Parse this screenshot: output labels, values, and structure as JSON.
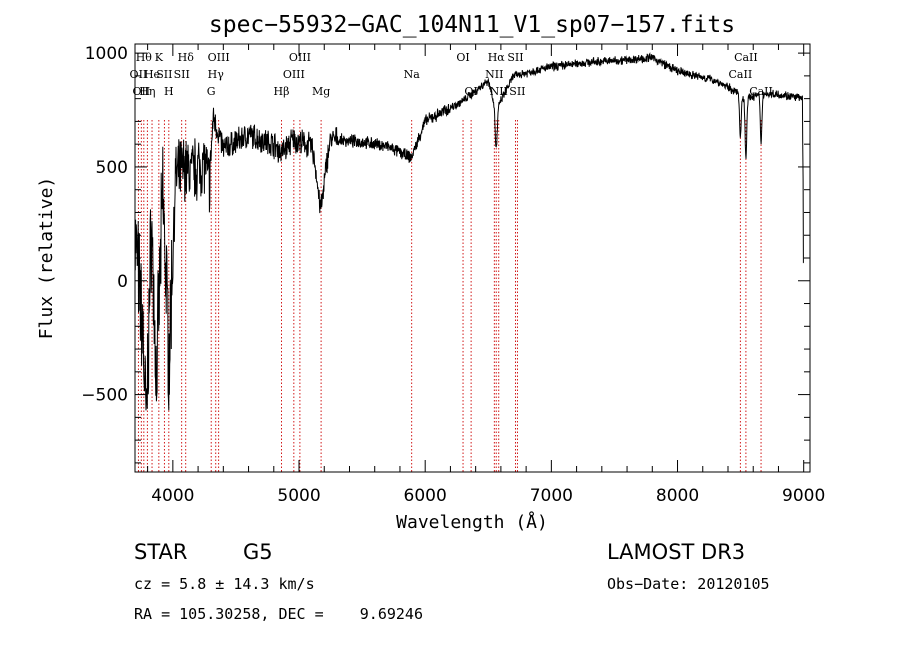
{
  "chart_data": {
    "type": "line",
    "title": "spec−55932−GAC_104N11_V1_sp07−157.fits",
    "xlabel": "Wavelength (Å)",
    "ylabel": "Flux (relative)",
    "xlim": [
      3700,
      9050
    ],
    "ylim": [
      -840,
      1040
    ],
    "x_ticks": [
      4000,
      5000,
      6000,
      7000,
      8000,
      9000
    ],
    "x_tick_labels": [
      "4000",
      "5000",
      "6000",
      "7000",
      "8000",
      "9000"
    ],
    "y_ticks": [
      -500,
      0,
      500,
      1000
    ],
    "y_tick_labels": [
      "−500",
      "0",
      "500",
      "1000"
    ],
    "grid": false,
    "spectrum_anchors": [
      {
        "w": 3700,
        "f": 200
      },
      {
        "w": 3760,
        "f": -200
      },
      {
        "w": 3790,
        "f": -640
      },
      {
        "w": 3830,
        "f": 250
      },
      {
        "w": 3870,
        "f": -450
      },
      {
        "w": 3920,
        "f": 400
      },
      {
        "w": 3970,
        "f": -350
      },
      {
        "w": 4020,
        "f": 450
      },
      {
        "w": 4080,
        "f": 500
      },
      {
        "w": 4150,
        "f": 480
      },
      {
        "w": 4250,
        "f": 520
      },
      {
        "w": 4290,
        "f": 430
      },
      {
        "w": 4320,
        "f": 720
      },
      {
        "w": 4400,
        "f": 580
      },
      {
        "w": 4600,
        "f": 640
      },
      {
        "w": 4800,
        "f": 600
      },
      {
        "w": 4860,
        "f": 560
      },
      {
        "w": 4950,
        "f": 620
      },
      {
        "w": 5100,
        "f": 590
      },
      {
        "w": 5170,
        "f": 480
      },
      {
        "w": 5250,
        "f": 620
      },
      {
        "w": 5500,
        "f": 610
      },
      {
        "w": 5700,
        "f": 590
      },
      {
        "w": 5890,
        "f": 540
      },
      {
        "w": 6000,
        "f": 700
      },
      {
        "w": 6300,
        "f": 790
      },
      {
        "w": 6500,
        "f": 880
      },
      {
        "w": 6563,
        "f": 750
      },
      {
        "w": 6700,
        "f": 900
      },
      {
        "w": 7000,
        "f": 940
      },
      {
        "w": 7300,
        "f": 960
      },
      {
        "w": 7600,
        "f": 970
      },
      {
        "w": 7800,
        "f": 980
      },
      {
        "w": 8000,
        "f": 920
      },
      {
        "w": 8300,
        "f": 880
      },
      {
        "w": 8498,
        "f": 820
      },
      {
        "w": 8542,
        "f": 800
      },
      {
        "w": 8662,
        "f": 820
      },
      {
        "w": 8800,
        "f": 820
      },
      {
        "w": 8990,
        "f": 800
      },
      {
        "w": 9000,
        "f": 80
      }
    ],
    "absorption_dips": [
      {
        "w": 5175,
        "depth": 160,
        "width": 40
      },
      {
        "w": 6563,
        "depth": 170,
        "width": 12
      },
      {
        "w": 8498,
        "depth": 200,
        "width": 9
      },
      {
        "w": 8542,
        "depth": 260,
        "width": 9
      },
      {
        "w": 8662,
        "depth": 220,
        "width": 9
      }
    ],
    "line_markers": [
      {
        "w": 3727,
        "label": "OII",
        "row": 2
      },
      {
        "w": 3750,
        "label": "OII",
        "row": 3
      },
      {
        "w": 3770,
        "label": "Hθ",
        "row": 1
      },
      {
        "w": 3798,
        "label": "Hη",
        "row": 3
      },
      {
        "w": 3835,
        "label": "He",
        "row": 2
      },
      {
        "w": 3889,
        "label": "K",
        "row": 1
      },
      {
        "w": 3933,
        "label": "SII",
        "row": 2
      },
      {
        "w": 3968,
        "label": "H",
        "row": 3
      },
      {
        "w": 4070,
        "label": "SII",
        "row": 2
      },
      {
        "w": 4102,
        "label": "Hδ",
        "row": 1
      },
      {
        "w": 4304,
        "label": "G",
        "row": 3
      },
      {
        "w": 4340,
        "label": "Hγ",
        "row": 2
      },
      {
        "w": 4363,
        "label": "OIII",
        "row": 1
      },
      {
        "w": 4861,
        "label": "Hβ",
        "row": 3
      },
      {
        "w": 4959,
        "label": "OIII",
        "row": 2
      },
      {
        "w": 5007,
        "label": "OIII",
        "row": 1
      },
      {
        "w": 5175,
        "label": "Mg",
        "row": 3
      },
      {
        "w": 5893,
        "label": "Na",
        "row": 2
      },
      {
        "w": 6300,
        "label": "OI",
        "row": 1
      },
      {
        "w": 6364,
        "label": "OI",
        "row": 3
      },
      {
        "w": 6548,
        "label": "NII",
        "row": 2
      },
      {
        "w": 6563,
        "label": "Hα",
        "row": 1
      },
      {
        "w": 6583,
        "label": "NII",
        "row": 3
      },
      {
        "w": 6716,
        "label": "SII",
        "row": 1
      },
      {
        "w": 6731,
        "label": "SII",
        "row": 3
      },
      {
        "w": 8498,
        "label": "CaII",
        "row": 2
      },
      {
        "w": 8542,
        "label": "CaII",
        "row": 1
      },
      {
        "w": 8662,
        "label": "CaII",
        "row": 3
      }
    ],
    "colors": {
      "spectrum": "#000000",
      "marker": "#cc0000",
      "axis": "#000000"
    }
  },
  "info": {
    "object_class": "STAR",
    "subclass": "G5",
    "survey": "LAMOST DR3",
    "redshift": "cz = 5.8 ± 14.3 km/s",
    "obs_date": "Obs−Date: 20120105",
    "coords": "RA = 105.30258, DEC =    9.69246"
  }
}
